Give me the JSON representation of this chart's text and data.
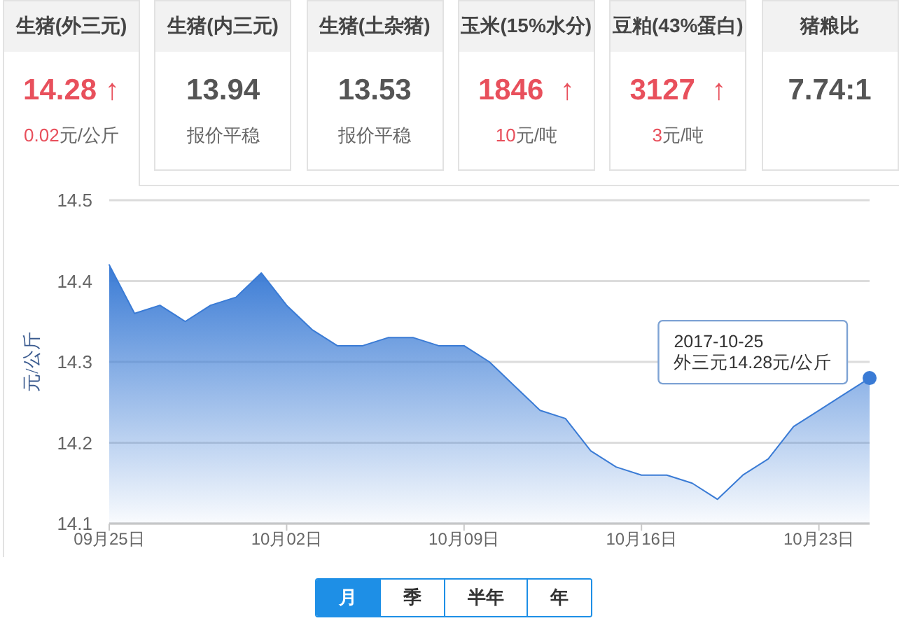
{
  "chart_data": [
    {
      "type": "other",
      "title": "生猪(外三元)",
      "annotations": [
        "14.28 ↑",
        "0.02",
        "元/公斤"
      ],
      "colors": [
        "#e8505c",
        "#e8505c",
        "#666666"
      ]
    },
    {
      "type": "other",
      "title": "生猪(内三元)",
      "annotations": [
        "13.94",
        "报价平稳"
      ],
      "colors": [
        "#555555",
        "#666666"
      ]
    },
    {
      "type": "other",
      "title": "生猪(土杂猪)",
      "annotations": [
        "13.53",
        "报价平稳"
      ],
      "colors": [
        "#555555",
        "#666666"
      ]
    },
    {
      "type": "other",
      "title": "玉米(15%水分)",
      "annotations": [
        "1846  ↑",
        "10",
        "元/吨"
      ],
      "colors": [
        "#e8505c",
        "#e8505c",
        "#666666"
      ]
    },
    {
      "type": "other",
      "title": "豆粕(43%蛋白)",
      "annotations": [
        "3127  ↑",
        "3",
        "元/吨"
      ],
      "colors": [
        "#e8505c",
        "#e8505c",
        "#666666"
      ]
    },
    {
      "type": "other",
      "title": "猪粮比",
      "annotations": [
        "7.74:1"
      ],
      "colors": [
        "#555555"
      ]
    },
    {
      "type": "area",
      "ylabel": "元/公斤",
      "x": [
        "2017-09-25",
        "2017-09-26",
        "2017-09-27",
        "2017-09-28",
        "2017-09-29",
        "2017-09-30",
        "2017-10-01",
        "2017-10-02",
        "2017-10-03",
        "2017-10-04",
        "2017-10-05",
        "2017-10-06",
        "2017-10-07",
        "2017-10-08",
        "2017-10-09",
        "2017-10-10",
        "2017-10-11",
        "2017-10-12",
        "2017-10-13",
        "2017-10-14",
        "2017-10-15",
        "2017-10-16",
        "2017-10-17",
        "2017-10-18",
        "2017-10-19",
        "2017-10-20",
        "2017-10-21",
        "2017-10-22",
        "2017-10-23",
        "2017-10-24",
        "2017-10-25"
      ],
      "series": [
        {
          "color": "#3a7bd5",
          "values": [
            14.42,
            14.36,
            14.37,
            14.35,
            14.37,
            14.38,
            14.41,
            14.37,
            14.34,
            14.32,
            14.32,
            14.33,
            14.33,
            14.32,
            14.32,
            14.3,
            14.27,
            14.24,
            14.23,
            14.19,
            14.17,
            14.16,
            14.16,
            14.15,
            14.13,
            14.16,
            14.18,
            14.22,
            14.24,
            14.26,
            14.28
          ]
        }
      ],
      "xlim": [
        "2017-09-25",
        "2017-10-25"
      ],
      "xticks": [
        {
          "value": "2017-09-25",
          "label": "09月25日"
        },
        {
          "value": "2017-10-02",
          "label": "10月02日"
        },
        {
          "value": "2017-10-09",
          "label": "10月09日"
        },
        {
          "value": "2017-10-16",
          "label": "10月16日"
        },
        {
          "value": "2017-10-23",
          "label": "10月23日"
        }
      ],
      "ylim": [
        14.1,
        14.5
      ],
      "yticks": [
        14.1,
        14.2,
        14.3,
        14.4,
        14.5
      ],
      "grid": "y",
      "annotations": [
        {
          "text": "2017-10-25\n外三元14.28元/公斤",
          "x": "2017-10-25",
          "y": 14.28
        }
      ]
    },
    {
      "type": "other",
      "categories": [
        "月",
        "季",
        "半年",
        "年"
      ],
      "colors": [
        "#1e8fe6",
        "#ffffff",
        "#ffffff",
        "#ffffff"
      ]
    }
  ]
}
